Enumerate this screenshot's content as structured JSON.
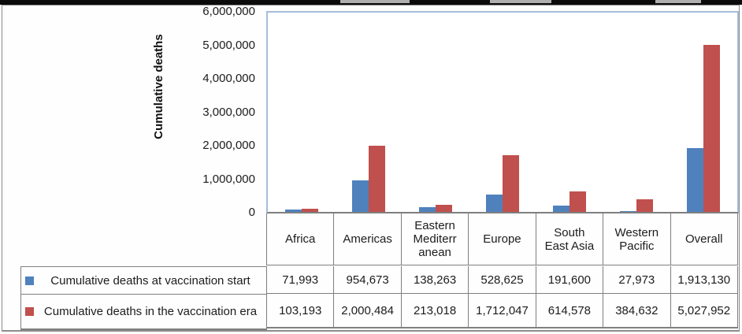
{
  "chart_data": {
    "type": "bar",
    "title": "",
    "xlabel": "",
    "ylabel": "Cumulative deaths",
    "ylim": [
      0,
      6000000
    ],
    "ytick_values": [
      0,
      1000000,
      2000000,
      3000000,
      4000000,
      5000000,
      6000000
    ],
    "ytick_labels": [
      "0",
      "1,000,000",
      "2,000,000",
      "3,000,000",
      "4,000,000",
      "5,000,000",
      "6,000,000"
    ],
    "grid": false,
    "legend_position": "left column of data table below chart",
    "categories": [
      "Africa",
      "Americas",
      "Eastern Mediterranean",
      "Europe",
      "South East Asia",
      "Western Pacific",
      "Overall"
    ],
    "category_display": [
      "Africa",
      "Americas",
      "Eastern\nMediterr\nanean",
      "Europe",
      "South\nEast Asia",
      "Western\nPacific",
      "Overall"
    ],
    "series": [
      {
        "name": "Cumulative deaths at vaccination start",
        "color": "#4F81BD",
        "values": [
          71993,
          954673,
          138263,
          528625,
          191600,
          27973,
          1913130
        ],
        "display_values": [
          "71,993",
          "954,673",
          "138,263",
          "528,625",
          "191,600",
          "27,973",
          "1,913,130"
        ]
      },
      {
        "name": "Cumulative deaths in the vaccination era",
        "color": "#C0504D",
        "values": [
          103193,
          2000484,
          213018,
          1712047,
          614578,
          384632,
          5027952
        ],
        "display_values": [
          "103,193",
          "2,000,484",
          "213,018",
          "1,712,047",
          "614,578",
          "384,632",
          "5,027,952"
        ]
      }
    ]
  },
  "colors": {
    "series1": "#4F81BD",
    "series2": "#C0504D",
    "plot_border": "#A5BDDC",
    "axis_line": "#7F7F7F",
    "table_border": "#7F7F7F",
    "top_bar": "#0B0B0B"
  }
}
